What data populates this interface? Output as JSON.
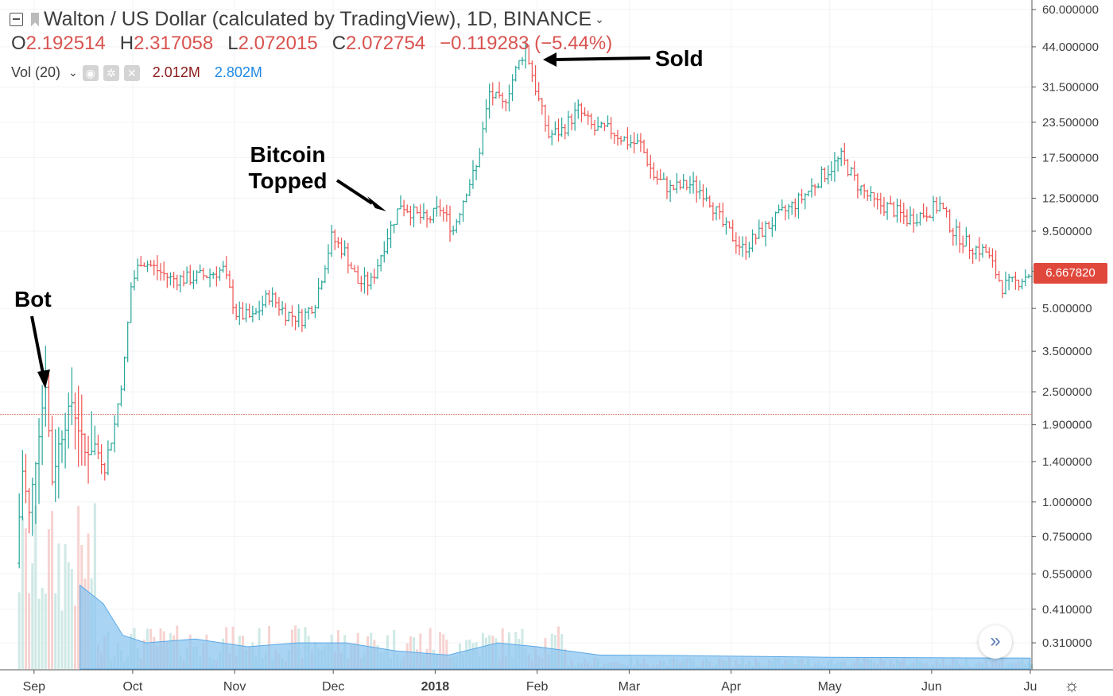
{
  "header": {
    "title": "Walton / US Dollar (calculated by TradingView), 1D, BINANCE",
    "ohlc": {
      "o_label": "O",
      "o_value": "2.192514",
      "h_label": "H",
      "h_value": "2.317058",
      "l_label": "L",
      "l_value": "2.072015",
      "c_label": "C",
      "c_value": "2.072754",
      "change": "−0.119283 (−5.44%)"
    },
    "volume": {
      "label": "Vol (20)",
      "value_1": "2.012M",
      "value_2": "2.802M"
    }
  },
  "annotations": {
    "bot": "Bot",
    "bitcoin_topped": "Bitcoin Topped",
    "sold": "Sold"
  },
  "price_tag": "6.667820",
  "colors": {
    "up": "#26a69a",
    "down": "#ef5350",
    "volume_area": "#8ec6ef",
    "price_tag": "#e0483c",
    "text": "#3d3d3d"
  },
  "icons": {
    "collapse": "collapse-icon",
    "symbol_flag": "flag-icon",
    "eye": "eye-icon",
    "gear": "gear-icon",
    "close": "close-icon",
    "scroll_right": "double-chevron-right-icon",
    "settings": "sun-gear-icon"
  },
  "chart_data": {
    "type": "ohlc",
    "title": "Walton / US Dollar (calculated by TradingView), 1D, BINANCE",
    "x_tick_labels": [
      "Sep",
      "Oct",
      "Nov",
      "Dec",
      "2018",
      "Feb",
      "Mar",
      "Apr",
      "May",
      "Jun",
      "Ju"
    ],
    "y_tick_labels": [
      "60.000000",
      "44.000000",
      "31.500000",
      "23.500000",
      "17.500000",
      "12.500000",
      "9.500000",
      "5.000000",
      "3.500000",
      "2.500000",
      "1.900000",
      "1.400000",
      "1.000000",
      "0.750000",
      "0.550000",
      "0.410000",
      "0.310000"
    ],
    "y_scale": "log",
    "y_range": [
      0.27,
      62
    ],
    "x_range": [
      "2017-08-26",
      "2018-07-01"
    ],
    "last_price": 6.66782,
    "horizontal_line": 2.072754,
    "price_path": [
      [
        "2017-08-27",
        0.6
      ],
      [
        "2017-08-29",
        1.3
      ],
      [
        "2017-08-31",
        0.9
      ],
      [
        "2017-09-03",
        1.8
      ],
      [
        "2017-09-05",
        2.7
      ],
      [
        "2017-09-07",
        1.2
      ],
      [
        "2017-09-09",
        1.6
      ],
      [
        "2017-09-13",
        2.3
      ],
      [
        "2017-09-17",
        1.5
      ],
      [
        "2017-09-20",
        1.6
      ],
      [
        "2017-09-23",
        1.35
      ],
      [
        "2017-09-26",
        1.9
      ],
      [
        "2017-09-29",
        3.2
      ],
      [
        "2017-10-01",
        6.0
      ],
      [
        "2017-10-04",
        7.5
      ],
      [
        "2017-10-08",
        7.0
      ],
      [
        "2017-10-13",
        6.4
      ],
      [
        "2017-10-18",
        6.4
      ],
      [
        "2017-10-24",
        6.6
      ],
      [
        "2017-10-29",
        6.9
      ],
      [
        "2017-11-02",
        4.8
      ],
      [
        "2017-11-07",
        4.6
      ],
      [
        "2017-11-12",
        5.6
      ],
      [
        "2017-11-17",
        4.8
      ],
      [
        "2017-11-22",
        4.6
      ],
      [
        "2017-11-26",
        5.3
      ],
      [
        "2017-12-01",
        9.0
      ],
      [
        "2017-12-05",
        8.0
      ],
      [
        "2017-12-09",
        6.2
      ],
      [
        "2017-12-13",
        6.2
      ],
      [
        "2017-12-18",
        9.2
      ],
      [
        "2017-12-22",
        12.0
      ],
      [
        "2017-12-26",
        11.0
      ],
      [
        "2017-12-30",
        10.3
      ],
      [
        "2018-01-03",
        11.5
      ],
      [
        "2018-01-07",
        9.6
      ],
      [
        "2018-01-11",
        13.5
      ],
      [
        "2018-01-14",
        16.0
      ],
      [
        "2018-01-18",
        30.0
      ],
      [
        "2018-01-22",
        27.0
      ],
      [
        "2018-01-26",
        36.0
      ],
      [
        "2018-01-29",
        44.0
      ],
      [
        "2018-02-02",
        28.0
      ],
      [
        "2018-02-05",
        21.0
      ],
      [
        "2018-02-09",
        22.0
      ],
      [
        "2018-02-14",
        26.0
      ],
      [
        "2018-02-19",
        22.0
      ],
      [
        "2018-02-24",
        22.0
      ],
      [
        "2018-03-01",
        20.0
      ],
      [
        "2018-03-05",
        19.5
      ],
      [
        "2018-03-09",
        15.0
      ],
      [
        "2018-03-14",
        13.5
      ],
      [
        "2018-03-20",
        14.0
      ],
      [
        "2018-03-25",
        13.0
      ],
      [
        "2018-03-30",
        10.0
      ],
      [
        "2018-04-05",
        8.2
      ],
      [
        "2018-04-11",
        9.5
      ],
      [
        "2018-04-17",
        11.0
      ],
      [
        "2018-04-23",
        12.5
      ],
      [
        "2018-04-29",
        15.0
      ],
      [
        "2018-05-05",
        17.5
      ],
      [
        "2018-05-10",
        14.0
      ],
      [
        "2018-05-15",
        12.0
      ],
      [
        "2018-05-20",
        11.5
      ],
      [
        "2018-05-25",
        10.5
      ],
      [
        "2018-05-30",
        11.0
      ],
      [
        "2018-06-04",
        11.8
      ],
      [
        "2018-06-08",
        9.5
      ],
      [
        "2018-06-13",
        8.4
      ],
      [
        "2018-06-18",
        8.0
      ],
      [
        "2018-06-23",
        6.0
      ],
      [
        "2018-06-27",
        6.2
      ],
      [
        "2018-07-01",
        6.67
      ]
    ],
    "volume_ma_path": [
      [
        "2017-09-15",
        0.5
      ],
      [
        "2017-09-22",
        0.43
      ],
      [
        "2017-09-28",
        0.33
      ],
      [
        "2017-10-05",
        0.31
      ],
      [
        "2017-10-20",
        0.32
      ],
      [
        "2017-11-05",
        0.3
      ],
      [
        "2017-11-20",
        0.31
      ],
      [
        "2017-12-05",
        0.31
      ],
      [
        "2017-12-20",
        0.29
      ],
      [
        "2018-01-05",
        0.28
      ],
      [
        "2018-01-20",
        0.31
      ],
      [
        "2018-02-01",
        0.3
      ],
      [
        "2018-02-20",
        0.28
      ],
      [
        "2018-03-15",
        0.279
      ],
      [
        "2018-05-01",
        0.275
      ],
      [
        "2018-07-01",
        0.273
      ]
    ]
  }
}
